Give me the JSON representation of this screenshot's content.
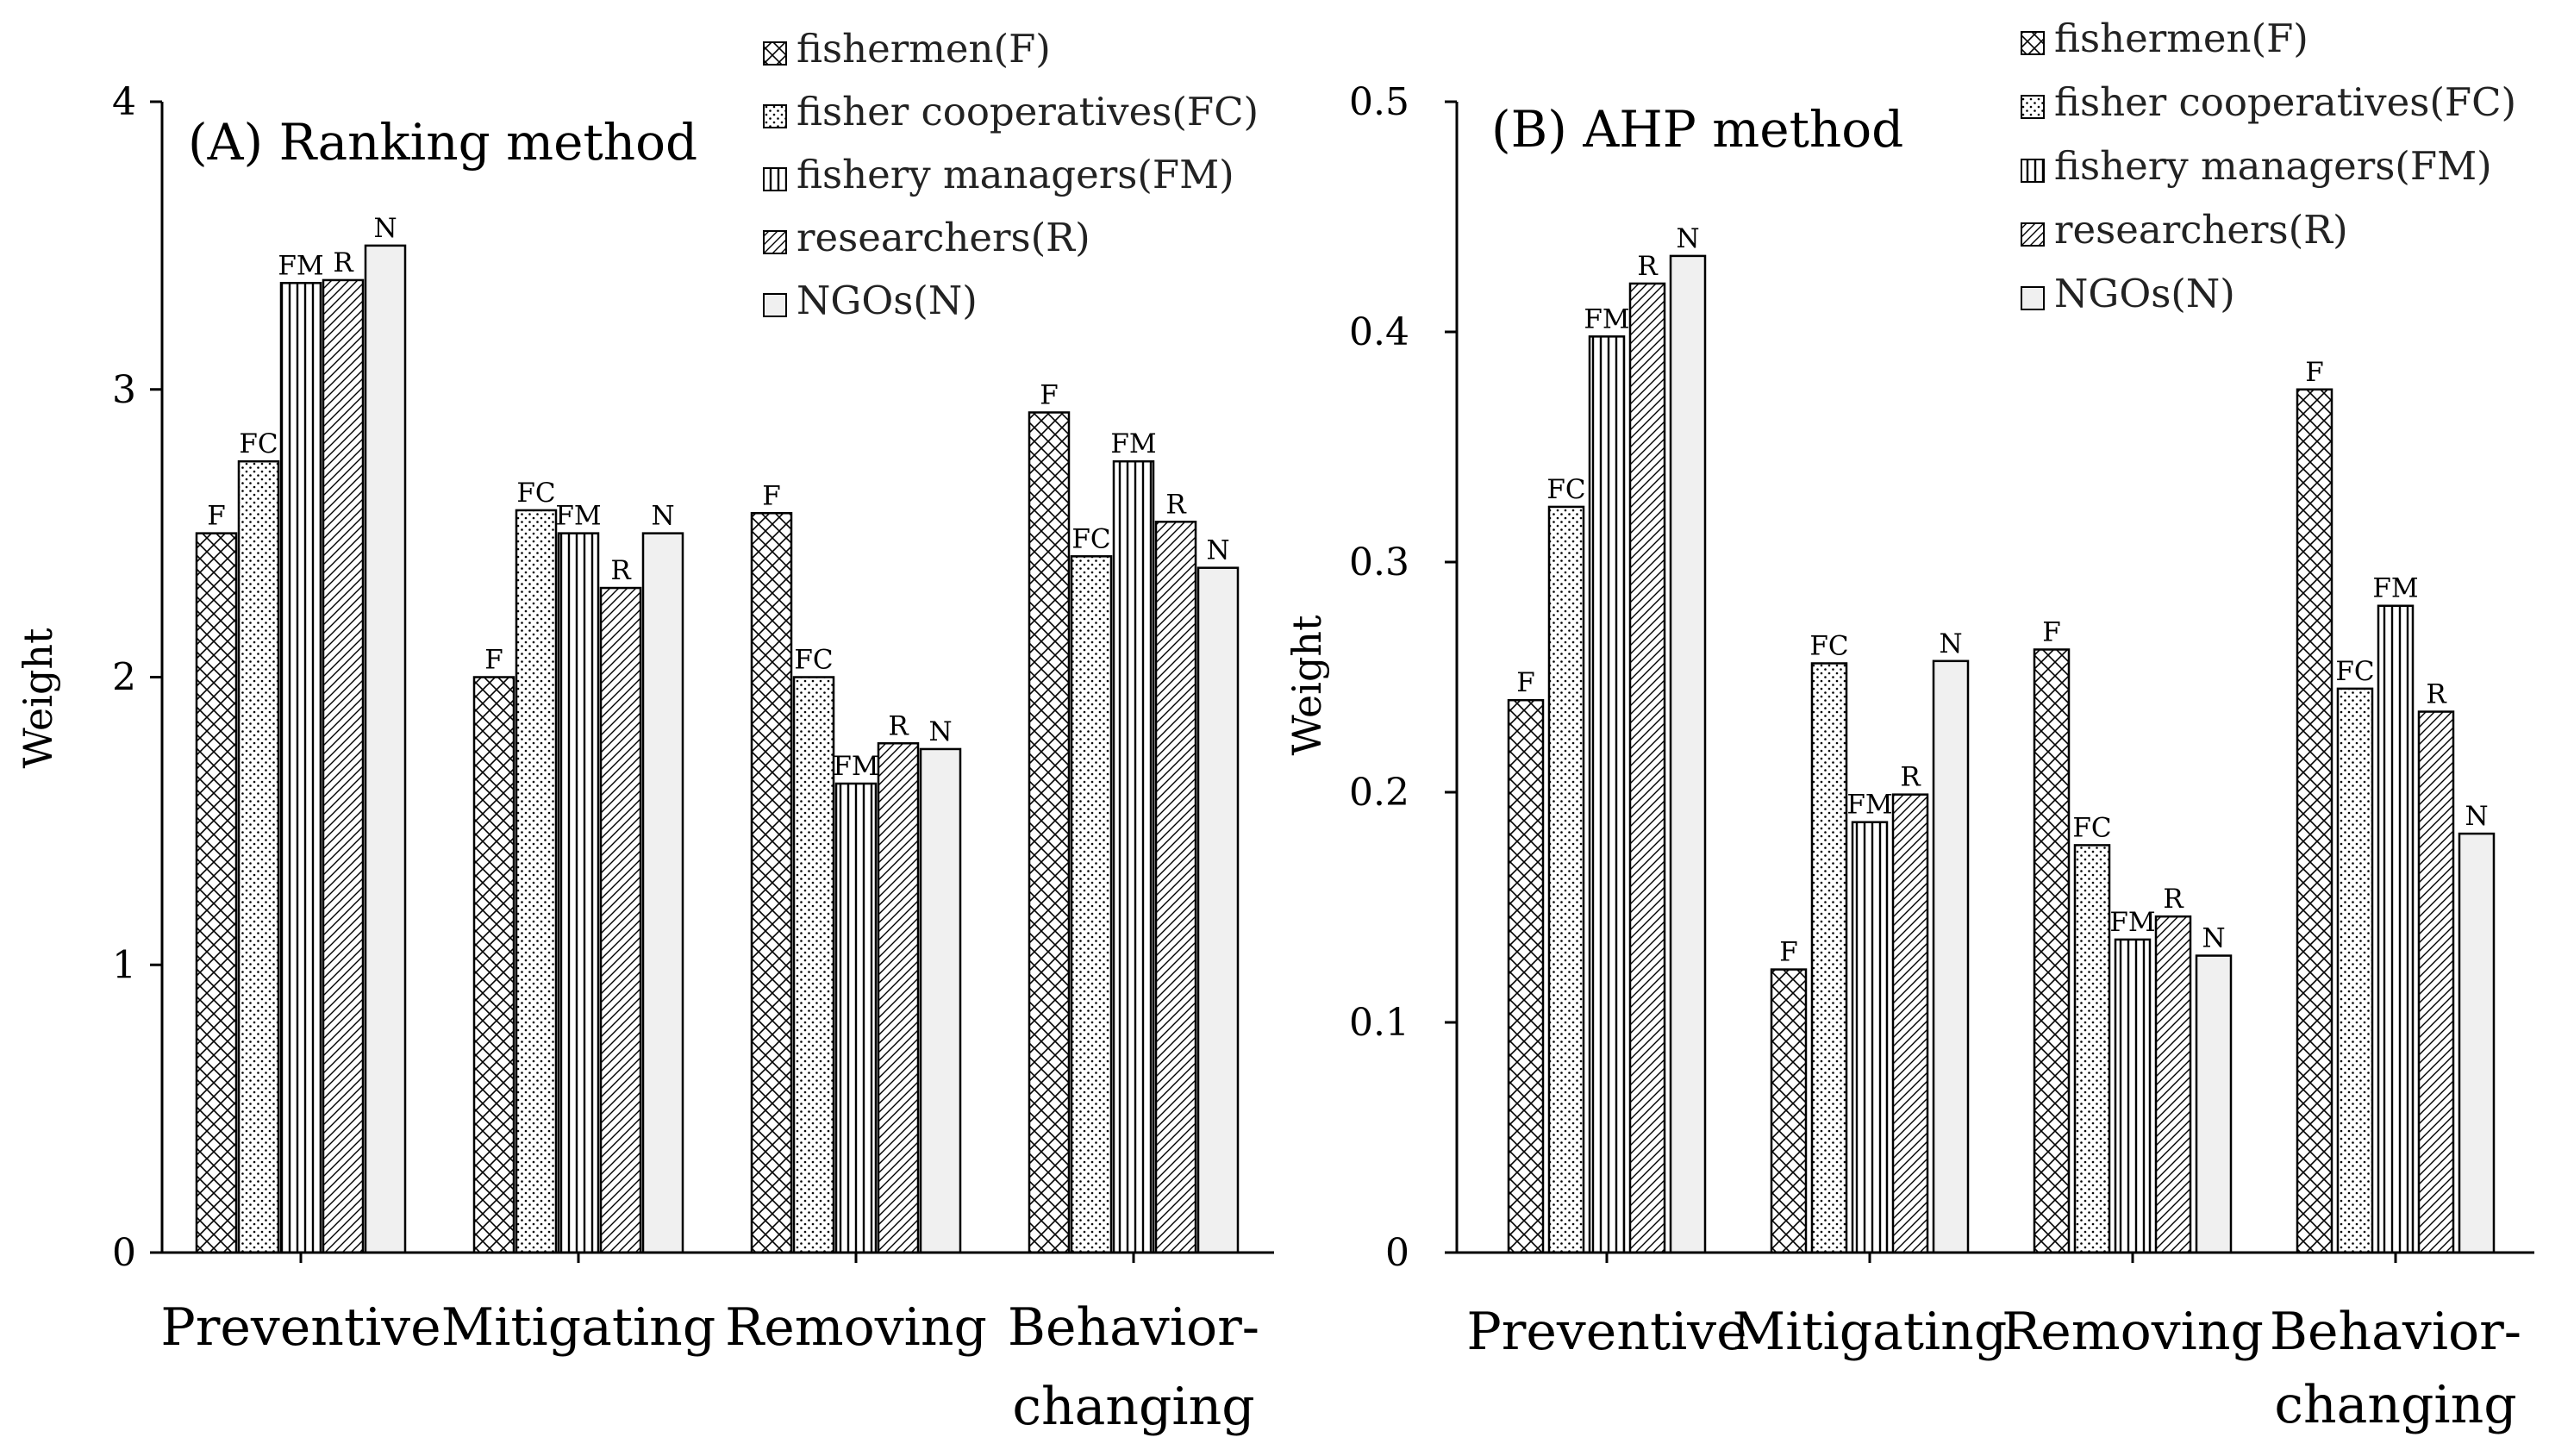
{
  "legend": [
    {
      "code": "F",
      "label": "fishermen(F)",
      "pattern": "cross"
    },
    {
      "code": "FC",
      "label": "fisher cooperatives(FC)",
      "pattern": "dots"
    },
    {
      "code": "FM",
      "label": "fishery managers(FM)",
      "pattern": "vlines"
    },
    {
      "code": "R",
      "label": "researchers(R)",
      "pattern": "diag"
    },
    {
      "code": "N",
      "label": "NGOs(N)",
      "pattern": "solid"
    }
  ],
  "colors": {
    "axis": "#000000",
    "bar_outline": "#000000",
    "ngo_fill": "#f0f0f0"
  },
  "chart_data": [
    {
      "type": "bar",
      "title": "(A) Ranking method",
      "ylabel": "Weight",
      "xlabel": "",
      "ylim": [
        0,
        4
      ],
      "yticks": [
        "0",
        "1",
        "2",
        "3",
        "4"
      ],
      "categories": [
        "Preventive",
        "Mitigating",
        "Removing",
        "Behavior-changing"
      ],
      "category_lines": [
        [
          "Preventive"
        ],
        [
          "Mitigating"
        ],
        [
          "Removing"
        ],
        [
          "Behavior-",
          "changing"
        ]
      ],
      "series": [
        {
          "name": "fishermen(F)",
          "code": "F",
          "values": [
            2.5,
            2.0,
            2.57,
            2.92
          ]
        },
        {
          "name": "fisher cooperatives(FC)",
          "code": "FC",
          "values": [
            2.75,
            2.58,
            2.0,
            2.42
          ]
        },
        {
          "name": "fishery managers(FM)",
          "code": "FM",
          "values": [
            3.37,
            2.5,
            1.63,
            2.75
          ]
        },
        {
          "name": "researchers(R)",
          "code": "R",
          "values": [
            3.38,
            2.31,
            1.77,
            2.54
          ]
        },
        {
          "name": "NGOs(N)",
          "code": "N",
          "values": [
            3.5,
            2.5,
            1.75,
            2.38
          ]
        }
      ],
      "grid": false,
      "legend_position": "top-right"
    },
    {
      "type": "bar",
      "title": "(B) AHP method",
      "ylabel": "Weight",
      "xlabel": "",
      "ylim": [
        0,
        0.5
      ],
      "yticks": [
        "0",
        "0.1",
        "0.2",
        "0.3",
        "0.4",
        "0.5"
      ],
      "categories": [
        "Preventive",
        "Mitigating",
        "Removing",
        "Behavior-changing"
      ],
      "category_lines": [
        [
          "Preventive"
        ],
        [
          "Mitigating"
        ],
        [
          "Removing"
        ],
        [
          "Behavior-",
          "changing"
        ]
      ],
      "series": [
        {
          "name": "fishermen(F)",
          "code": "F",
          "values": [
            0.24,
            0.123,
            0.262,
            0.375
          ]
        },
        {
          "name": "fisher cooperatives(FC)",
          "code": "FC",
          "values": [
            0.324,
            0.256,
            0.177,
            0.245
          ]
        },
        {
          "name": "fishery managers(FM)",
          "code": "FM",
          "values": [
            0.398,
            0.187,
            0.136,
            0.281
          ]
        },
        {
          "name": "researchers(R)",
          "code": "R",
          "values": [
            0.421,
            0.199,
            0.146,
            0.235
          ]
        },
        {
          "name": "NGOs(N)",
          "code": "N",
          "values": [
            0.433,
            0.257,
            0.129,
            0.182
          ]
        }
      ],
      "grid": false,
      "legend_position": "top-right"
    }
  ]
}
